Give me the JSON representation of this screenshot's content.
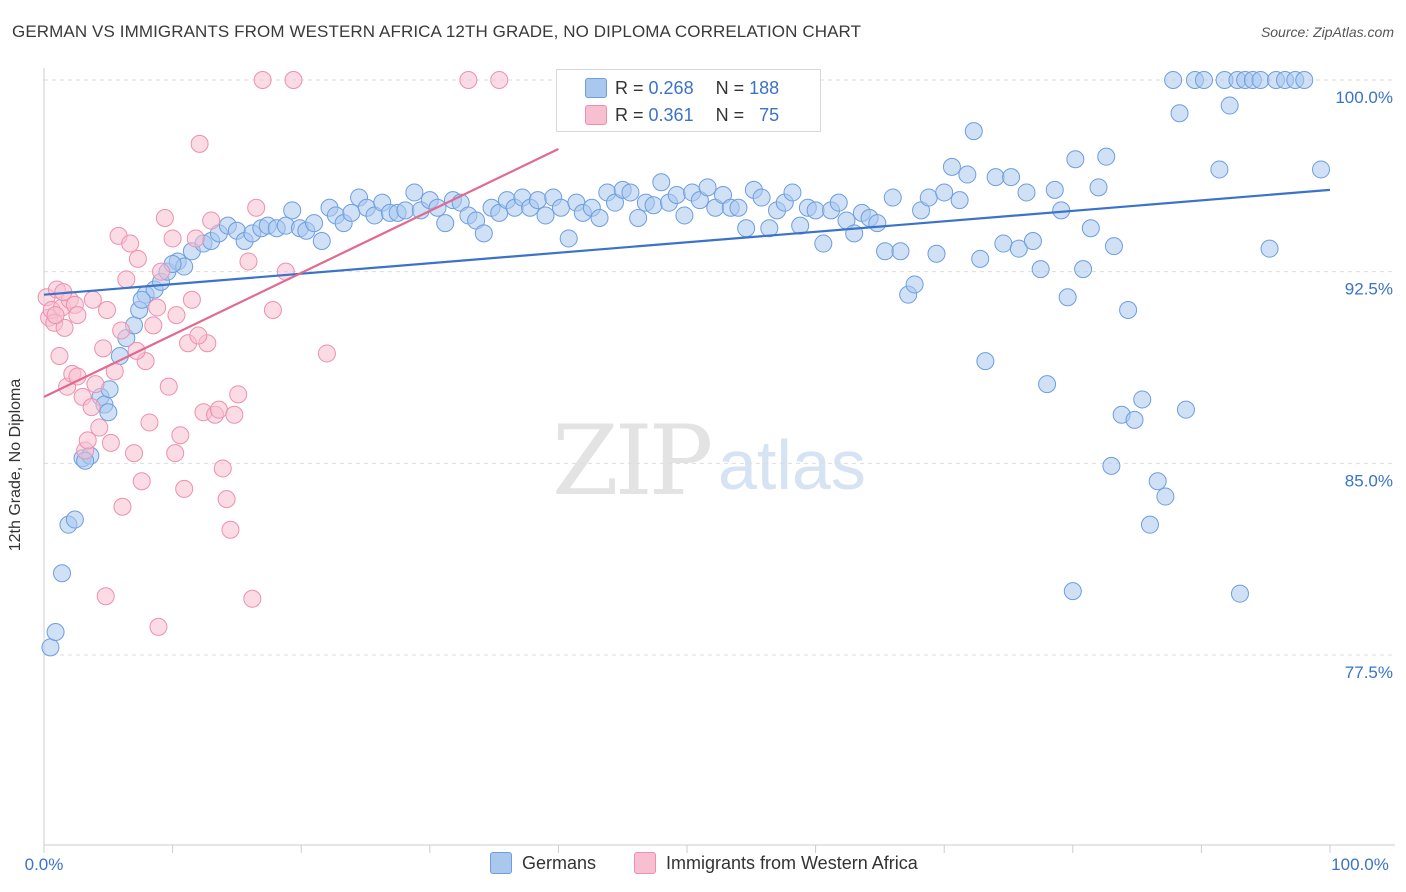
{
  "title": "GERMAN VS IMMIGRANTS FROM WESTERN AFRICA 12TH GRADE, NO DIPLOMA CORRELATION CHART",
  "source": "Source: ZipAtlas.com",
  "watermark": {
    "zip": "ZIP",
    "atlas": "atlas"
  },
  "legend_box": {
    "rows": [
      {
        "r_label": "R =",
        "r_value": "0.268",
        "n_label": "N =",
        "n_value": "188"
      },
      {
        "r_label": "R =",
        "r_value": "0.361",
        "n_label": "N =",
        "n_value": "75"
      }
    ]
  },
  "bottom_legend": [
    "Germans",
    "Immigrants from Western Africa"
  ],
  "colors": {
    "blue_fill": "#aac8ee",
    "blue_stroke": "#6d9ee0",
    "blue_line": "#3a73c9",
    "pink_fill": "#f7bfd0",
    "pink_stroke": "#ee8fb0",
    "pink_line": "#e2698f",
    "grid": "#dddddd",
    "tick_label": "#3a73c9"
  },
  "chart_data": {
    "type": "scatter",
    "title": "GERMAN VS IMMIGRANTS FROM WESTERN AFRICA 12TH GRADE, NO DIPLOMA CORRELATION CHART",
    "xlabel": "",
    "ylabel": "12th Grade, No Diploma",
    "xlim": [
      0,
      100
    ],
    "ylim": [
      70,
      101.5
    ],
    "x_tick_labels": [
      "0.0%",
      "100.0%"
    ],
    "y_ticks": [
      77.5,
      85.0,
      92.5,
      100.0
    ],
    "y_tick_labels": [
      "77.5%",
      "85.0%",
      "92.5%",
      "100.0%"
    ],
    "grid": true,
    "legend_position": "bottom",
    "series": [
      {
        "name": "Germans",
        "R": 0.268,
        "N": 188,
        "trend": [
          [
            0,
            91.6
          ],
          [
            100,
            95.7
          ]
        ],
        "points": [
          [
            0.5,
            77.8
          ],
          [
            0.9,
            78.4
          ],
          [
            1.4,
            80.7
          ],
          [
            1.9,
            82.6
          ],
          [
            2.4,
            82.8
          ],
          [
            3.0,
            85.2
          ],
          [
            3.6,
            85.3
          ],
          [
            4.4,
            87.6
          ],
          [
            4.7,
            87.3
          ],
          [
            5.1,
            87.9
          ],
          [
            5.9,
            89.2
          ],
          [
            6.4,
            89.9
          ],
          [
            7.0,
            90.4
          ],
          [
            7.4,
            91.0
          ],
          [
            7.9,
            91.6
          ],
          [
            8.6,
            91.8
          ],
          [
            9.1,
            92.1
          ],
          [
            9.6,
            92.5
          ],
          [
            10.4,
            92.9
          ],
          [
            10.9,
            92.7
          ],
          [
            11.5,
            93.3
          ],
          [
            12.4,
            93.6
          ],
          [
            13.0,
            93.7
          ],
          [
            13.6,
            94.0
          ],
          [
            14.3,
            94.3
          ],
          [
            15.0,
            94.1
          ],
          [
            15.6,
            93.7
          ],
          [
            16.2,
            94.0
          ],
          [
            16.9,
            94.2
          ],
          [
            17.4,
            94.3
          ],
          [
            18.1,
            94.2
          ],
          [
            18.8,
            94.3
          ],
          [
            19.3,
            94.9
          ],
          [
            19.9,
            94.2
          ],
          [
            20.4,
            94.1
          ],
          [
            21.0,
            94.4
          ],
          [
            21.6,
            93.7
          ],
          [
            22.2,
            95.0
          ],
          [
            22.7,
            94.7
          ],
          [
            23.3,
            94.4
          ],
          [
            23.9,
            94.8
          ],
          [
            24.5,
            95.4
          ],
          [
            25.1,
            95.0
          ],
          [
            25.7,
            94.7
          ],
          [
            26.3,
            95.2
          ],
          [
            26.9,
            94.8
          ],
          [
            27.5,
            94.8
          ],
          [
            28.1,
            94.9
          ],
          [
            28.8,
            95.6
          ],
          [
            29.3,
            94.9
          ],
          [
            30.0,
            95.3
          ],
          [
            30.6,
            95.0
          ],
          [
            31.2,
            94.4
          ],
          [
            31.8,
            95.3
          ],
          [
            32.4,
            95.2
          ],
          [
            33.0,
            94.7
          ],
          [
            33.6,
            94.5
          ],
          [
            34.2,
            94.0
          ],
          [
            34.8,
            95.0
          ],
          [
            35.4,
            94.8
          ],
          [
            36.0,
            95.3
          ],
          [
            36.6,
            95.0
          ],
          [
            37.2,
            95.4
          ],
          [
            37.8,
            95.0
          ],
          [
            38.4,
            95.3
          ],
          [
            39.0,
            94.7
          ],
          [
            39.6,
            95.4
          ],
          [
            40.2,
            95.0
          ],
          [
            40.8,
            93.8
          ],
          [
            41.4,
            95.2
          ],
          [
            41.9,
            94.8
          ],
          [
            42.6,
            95.0
          ],
          [
            43.2,
            94.6
          ],
          [
            43.8,
            95.6
          ],
          [
            44.4,
            95.2
          ],
          [
            45.0,
            95.7
          ],
          [
            45.6,
            95.6
          ],
          [
            46.2,
            94.6
          ],
          [
            46.8,
            95.2
          ],
          [
            47.4,
            95.1
          ],
          [
            48.0,
            96.0
          ],
          [
            48.6,
            95.2
          ],
          [
            49.2,
            95.5
          ],
          [
            49.8,
            94.7
          ],
          [
            50.4,
            95.6
          ],
          [
            51.0,
            95.3
          ],
          [
            51.6,
            95.8
          ],
          [
            52.2,
            95.0
          ],
          [
            52.8,
            95.5
          ],
          [
            53.4,
            95.0
          ],
          [
            54.0,
            95.0
          ],
          [
            54.6,
            94.2
          ],
          [
            55.2,
            95.7
          ],
          [
            55.8,
            95.4
          ],
          [
            56.4,
            94.2
          ],
          [
            57.0,
            94.9
          ],
          [
            57.6,
            95.2
          ],
          [
            58.2,
            95.6
          ],
          [
            58.8,
            94.3
          ],
          [
            59.4,
            95.0
          ],
          [
            60.0,
            94.9
          ],
          [
            60.6,
            93.6
          ],
          [
            61.2,
            94.9
          ],
          [
            61.8,
            95.2
          ],
          [
            62.4,
            94.5
          ],
          [
            63.0,
            94.0
          ],
          [
            63.6,
            94.8
          ],
          [
            64.2,
            94.6
          ],
          [
            64.8,
            94.4
          ],
          [
            65.4,
            93.3
          ],
          [
            66.0,
            95.4
          ],
          [
            66.6,
            93.3
          ],
          [
            67.2,
            91.6
          ],
          [
            67.7,
            92.0
          ],
          [
            68.2,
            94.9
          ],
          [
            68.8,
            95.4
          ],
          [
            69.4,
            93.2
          ],
          [
            70.0,
            95.6
          ],
          [
            70.6,
            96.6
          ],
          [
            71.2,
            95.3
          ],
          [
            71.8,
            96.3
          ],
          [
            72.3,
            98.0
          ],
          [
            72.8,
            93.0
          ],
          [
            73.2,
            89.0
          ],
          [
            74.0,
            96.2
          ],
          [
            74.6,
            93.6
          ],
          [
            75.2,
            96.2
          ],
          [
            75.8,
            93.4
          ],
          [
            76.4,
            95.6
          ],
          [
            76.9,
            93.7
          ],
          [
            77.5,
            92.6
          ],
          [
            78.0,
            88.1
          ],
          [
            78.6,
            95.7
          ],
          [
            79.1,
            94.9
          ],
          [
            79.6,
            91.5
          ],
          [
            80.2,
            96.9
          ],
          [
            80.8,
            92.6
          ],
          [
            81.4,
            94.2
          ],
          [
            82.0,
            95.8
          ],
          [
            82.6,
            97.0
          ],
          [
            83.2,
            93.5
          ],
          [
            83.8,
            86.9
          ],
          [
            84.3,
            91.0
          ],
          [
            84.8,
            86.7
          ],
          [
            85.4,
            87.5
          ],
          [
            86.0,
            82.6
          ],
          [
            86.6,
            84.3
          ],
          [
            87.2,
            83.7
          ],
          [
            87.8,
            100.0
          ],
          [
            88.3,
            98.7
          ],
          [
            88.8,
            87.1
          ],
          [
            89.5,
            100.0
          ],
          [
            90.2,
            100.0
          ],
          [
            91.4,
            96.5
          ],
          [
            91.8,
            100.0
          ],
          [
            92.2,
            99.0
          ],
          [
            92.8,
            100.0
          ],
          [
            93.4,
            100.0
          ],
          [
            94.0,
            100.0
          ],
          [
            94.6,
            100.0
          ],
          [
            95.3,
            93.4
          ],
          [
            95.8,
            100.0
          ],
          [
            96.5,
            100.0
          ],
          [
            97.3,
            100.0
          ],
          [
            98.0,
            100.0
          ],
          [
            80.0,
            80.0
          ],
          [
            83.0,
            84.9
          ],
          [
            93.0,
            79.9
          ],
          [
            99.3,
            96.5
          ],
          [
            3.2,
            85.1
          ],
          [
            5.0,
            87.0
          ],
          [
            7.6,
            91.4
          ],
          [
            10.0,
            92.8
          ]
        ]
      },
      {
        "name": "Immigrants from Western Africa",
        "R": 0.361,
        "N": 75,
        "trend": [
          [
            0,
            87.6
          ],
          [
            40,
            97.3
          ]
        ],
        "points": [
          [
            0.2,
            91.5
          ],
          [
            0.4,
            90.7
          ],
          [
            0.6,
            91.0
          ],
          [
            0.8,
            90.5
          ],
          [
            1.0,
            91.8
          ],
          [
            1.2,
            89.2
          ],
          [
            1.4,
            91.1
          ],
          [
            1.6,
            90.3
          ],
          [
            1.8,
            88.0
          ],
          [
            2.0,
            91.4
          ],
          [
            2.2,
            88.5
          ],
          [
            2.4,
            91.2
          ],
          [
            2.6,
            88.4
          ],
          [
            3.0,
            87.6
          ],
          [
            3.2,
            85.5
          ],
          [
            3.4,
            85.9
          ],
          [
            3.7,
            87.2
          ],
          [
            4.0,
            88.1
          ],
          [
            4.3,
            86.4
          ],
          [
            4.6,
            89.5
          ],
          [
            4.9,
            91.0
          ],
          [
            5.2,
            85.8
          ],
          [
            5.5,
            88.6
          ],
          [
            5.8,
            93.9
          ],
          [
            6.1,
            83.3
          ],
          [
            6.4,
            92.2
          ],
          [
            6.7,
            93.6
          ],
          [
            7.0,
            85.4
          ],
          [
            7.3,
            93.0
          ],
          [
            7.6,
            84.3
          ],
          [
            7.9,
            89.0
          ],
          [
            8.2,
            86.6
          ],
          [
            8.5,
            90.4
          ],
          [
            8.8,
            91.1
          ],
          [
            9.1,
            92.5
          ],
          [
            9.4,
            94.6
          ],
          [
            9.7,
            88.0
          ],
          [
            10.0,
            93.8
          ],
          [
            10.3,
            90.8
          ],
          [
            10.6,
            86.1
          ],
          [
            10.9,
            84.0
          ],
          [
            11.2,
            89.7
          ],
          [
            11.5,
            91.4
          ],
          [
            11.8,
            93.8
          ],
          [
            12.1,
            97.5
          ],
          [
            12.4,
            87.0
          ],
          [
            12.7,
            89.7
          ],
          [
            13.0,
            94.5
          ],
          [
            13.3,
            86.9
          ],
          [
            13.6,
            87.1
          ],
          [
            13.9,
            84.8
          ],
          [
            14.2,
            83.6
          ],
          [
            14.5,
            82.4
          ],
          [
            14.8,
            86.9
          ],
          [
            15.1,
            87.7
          ],
          [
            15.9,
            92.9
          ],
          [
            16.2,
            79.7
          ],
          [
            16.5,
            95.0
          ],
          [
            17.0,
            100.0
          ],
          [
            17.8,
            91.0
          ],
          [
            18.8,
            92.5
          ],
          [
            19.4,
            100.0
          ],
          [
            22.0,
            89.3
          ],
          [
            33.0,
            100.0
          ],
          [
            35.4,
            100.0
          ],
          [
            2.6,
            90.8
          ],
          [
            3.8,
            91.4
          ],
          [
            4.8,
            79.8
          ],
          [
            7.2,
            89.4
          ],
          [
            8.9,
            78.6
          ],
          [
            10.2,
            85.4
          ],
          [
            12.0,
            90.0
          ],
          [
            0.9,
            90.8
          ],
          [
            1.5,
            91.7
          ],
          [
            6.0,
            90.2
          ]
        ]
      }
    ]
  }
}
